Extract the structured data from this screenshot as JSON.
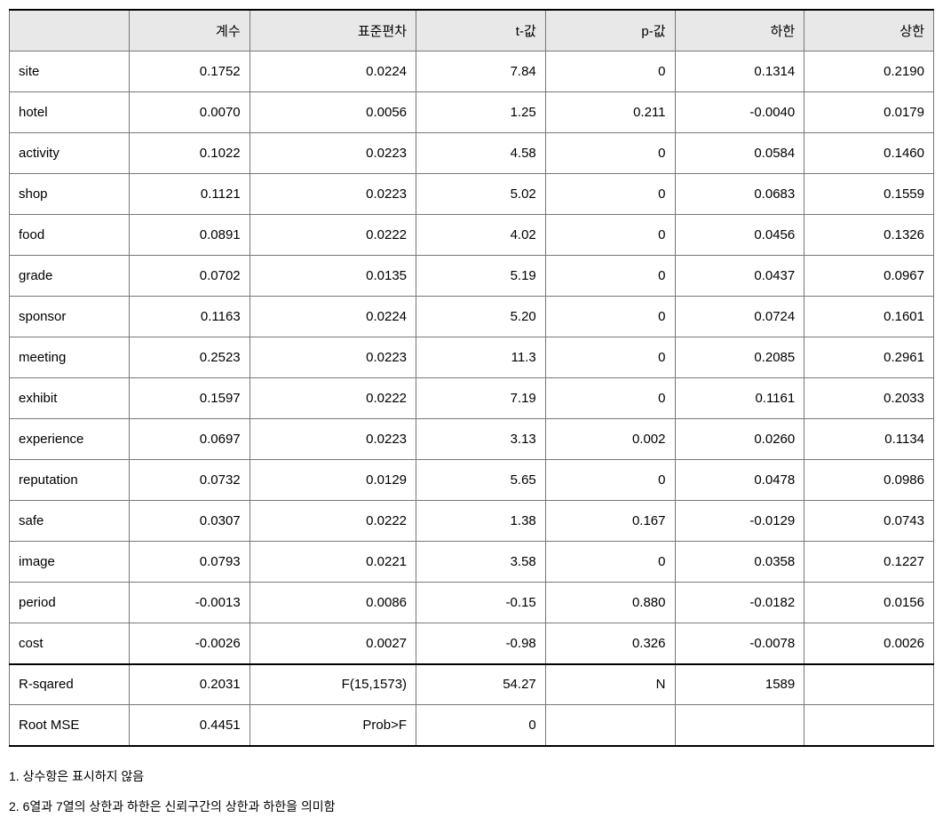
{
  "table": {
    "columns": [
      "",
      "계수",
      "표준편차",
      "t-값",
      "p-값",
      "하한",
      "상한"
    ],
    "col_widths": [
      "13%",
      "13%",
      "18%",
      "14%",
      "14%",
      "14%",
      "14%"
    ],
    "header_bg": "#e8e8e8",
    "border_color": "#777777",
    "outer_border_color": "#000000",
    "rows": [
      [
        "site",
        "0.1752",
        "0.0224",
        "7.84",
        "0",
        "0.1314",
        "0.2190"
      ],
      [
        "hotel",
        "0.0070",
        "0.0056",
        "1.25",
        "0.211",
        "-0.0040",
        "0.0179"
      ],
      [
        "activity",
        "0.1022",
        "0.0223",
        "4.58",
        "0",
        "0.0584",
        "0.1460"
      ],
      [
        "shop",
        "0.1121",
        "0.0223",
        "5.02",
        "0",
        "0.0683",
        "0.1559"
      ],
      [
        "food",
        "0.0891",
        "0.0222",
        "4.02",
        "0",
        "0.0456",
        "0.1326"
      ],
      [
        "grade",
        "0.0702",
        "0.0135",
        "5.19",
        "0",
        "0.0437",
        "0.0967"
      ],
      [
        "sponsor",
        "0.1163",
        "0.0224",
        "5.20",
        "0",
        "0.0724",
        "0.1601"
      ],
      [
        "meeting",
        "0.2523",
        "0.0223",
        "11.3",
        "0",
        "0.2085",
        "0.2961"
      ],
      [
        "exhibit",
        "0.1597",
        "0.0222",
        "7.19",
        "0",
        "0.1161",
        "0.2033"
      ],
      [
        "experience",
        "0.0697",
        "0.0223",
        "3.13",
        "0.002",
        "0.0260",
        "0.1134"
      ],
      [
        "reputation",
        "0.0732",
        "0.0129",
        "5.65",
        "0",
        "0.0478",
        "0.0986"
      ],
      [
        "safe",
        "0.0307",
        "0.0222",
        "1.38",
        "0.167",
        "-0.0129",
        "0.0743"
      ],
      [
        "image",
        "0.0793",
        "0.0221",
        "3.58",
        "0",
        "0.0358",
        "0.1227"
      ],
      [
        "period",
        "-0.0013",
        "0.0086",
        "-0.15",
        "0.880",
        "-0.0182",
        "0.0156"
      ],
      [
        "cost",
        "-0.0026",
        "0.0027",
        "-0.98",
        "0.326",
        "-0.0078",
        "0.0026"
      ]
    ],
    "summary_rows": [
      [
        "R-sqared",
        "0.2031",
        "F(15,1573)",
        "54.27",
        "N",
        "1589",
        ""
      ],
      [
        "Root MSE",
        "0.4451",
        "Prob>F",
        "0",
        "",
        "",
        ""
      ]
    ]
  },
  "footnotes": [
    "1. 상수항은 표시하지 않음",
    "2. 6열과 7열의 상한과 하한은 신뢰구간의 상한과 하한을 의미함"
  ]
}
